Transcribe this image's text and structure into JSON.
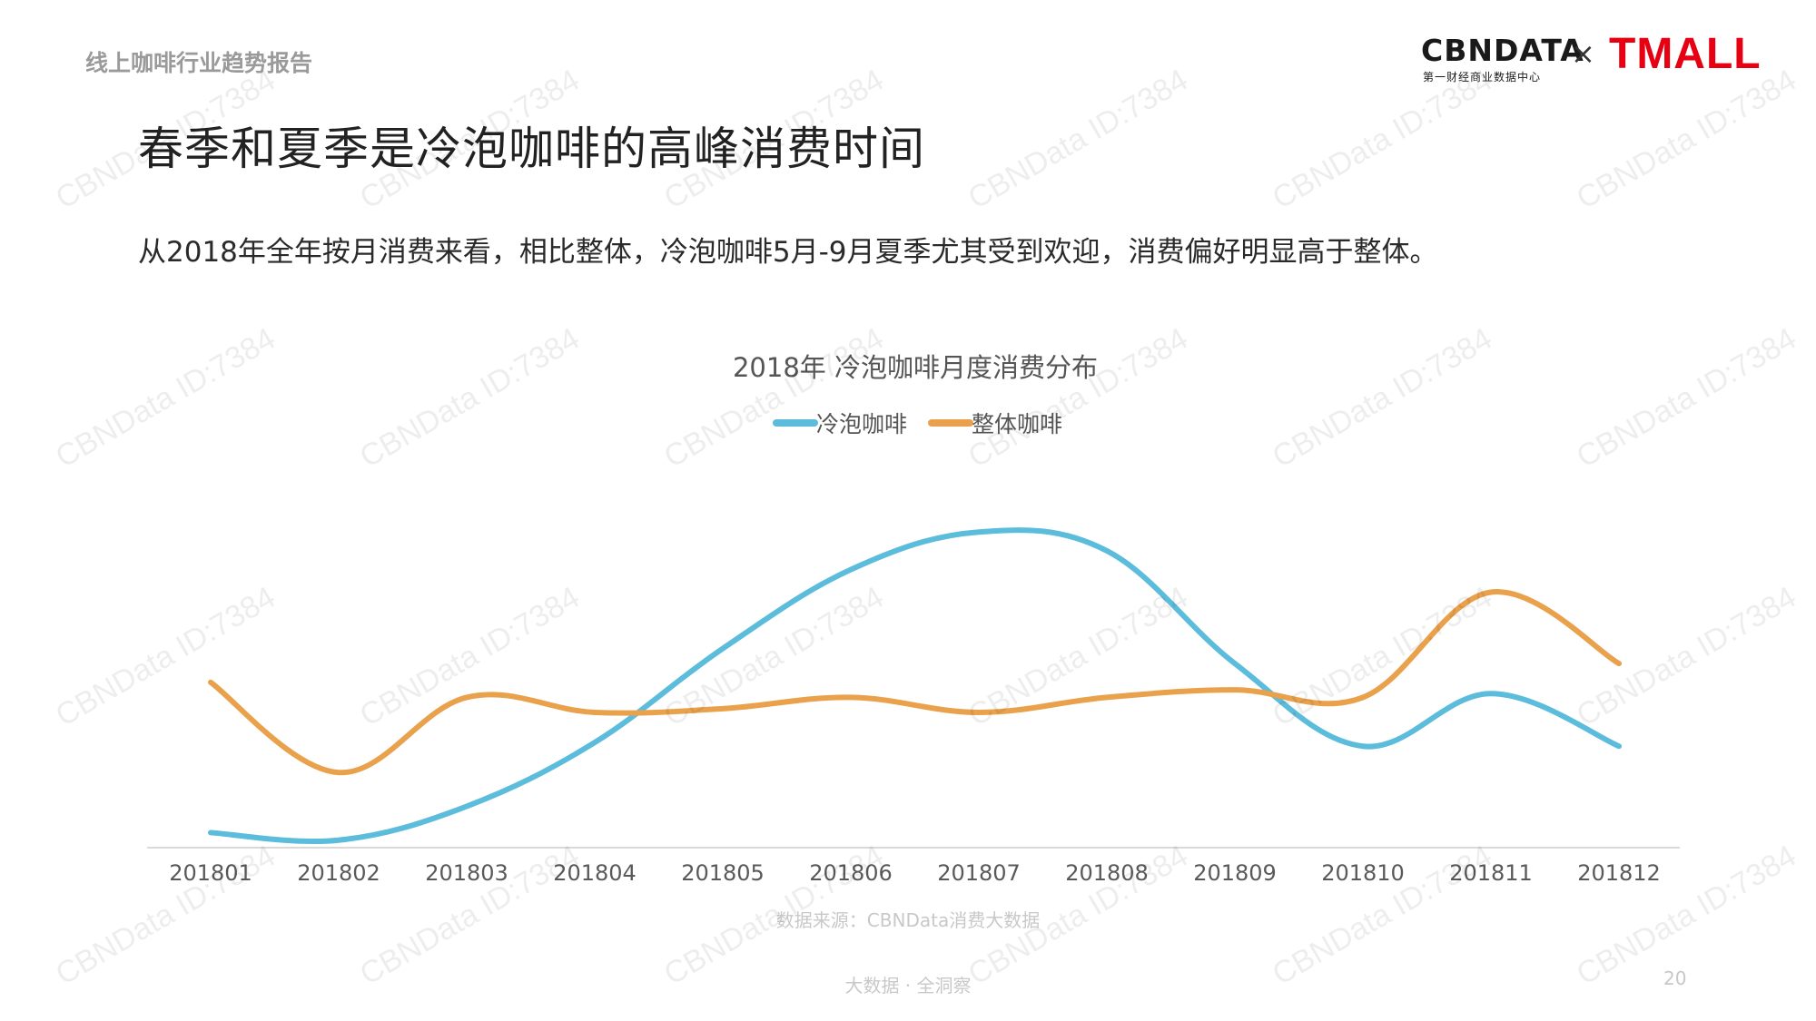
{
  "header": {
    "report_tag": "线上咖啡行业趋势报告",
    "title": "春季和夏季是冷泡咖啡的高峰消费时间",
    "subtitle": "从2018年全年按月消费来看，相比整体，冷泡咖啡5月-9月夏季尤其受到欢迎，消费偏好明显高于整体。"
  },
  "logo": {
    "cbn_wordmark": "CBNDATA",
    "cbn_sub": "第一财经商业数据中心",
    "times": "×",
    "tmall_wordmark": "TMALL"
  },
  "watermark": "CBNData ID:7384",
  "chart_data": {
    "type": "line",
    "title": "2018年 冷泡咖啡月度消费分布",
    "categories": [
      "201801",
      "201802",
      "201803",
      "201804",
      "201805",
      "201806",
      "201807",
      "201808",
      "201809",
      "201810",
      "201811",
      "201812"
    ],
    "series": [
      {
        "name": "冷泡咖啡",
        "color": "#5bbcdc",
        "values": [
          4,
          2,
          11,
          28,
          53,
          74,
          84,
          79,
          49,
          27,
          41,
          27
        ]
      },
      {
        "name": "整体咖啡",
        "color": "#e9a14c",
        "values": [
          44,
          20,
          40,
          36,
          37,
          40,
          36,
          40,
          42,
          40,
          68,
          49
        ]
      }
    ],
    "ylim": [
      0,
      100
    ],
    "legend": "top-center",
    "grid": false,
    "y_axis_labels": false,
    "source": "数据来源：CBNData消费大数据"
  },
  "footer": {
    "text": "大数据 · 全洞察",
    "page_number": "20"
  }
}
